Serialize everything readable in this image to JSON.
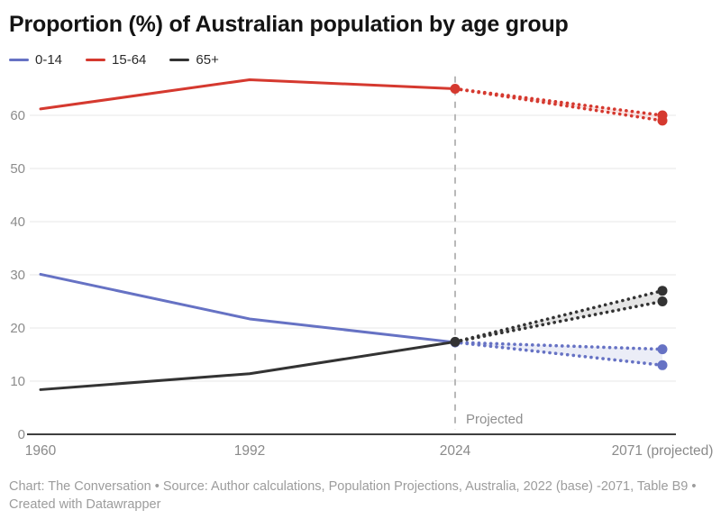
{
  "title": "Proportion (%) of Australian population by age group",
  "chart_data": {
    "type": "line",
    "title": "Proportion (%) of Australian population by age group",
    "x_categories": [
      "1960",
      "1992",
      "2024",
      "2071 (projected)"
    ],
    "y_ticks": [
      0,
      10,
      20,
      30,
      40,
      50,
      60
    ],
    "ylim": [
      0,
      68
    ],
    "grid": true,
    "legend_position": "top",
    "projection": {
      "divider_at": "2024",
      "divider_label": "Projected"
    },
    "series": [
      {
        "name": "0-14",
        "color": "#6672c4",
        "historical": {
          "x": [
            "1960",
            "1992",
            "2024"
          ],
          "values": [
            30.1,
            21.7,
            17.3
          ]
        },
        "projected_2071": {
          "high": 16,
          "low": 13
        }
      },
      {
        "name": "15-64",
        "color": "#d5392f",
        "historical": {
          "x": [
            "1960",
            "1992",
            "2024"
          ],
          "values": [
            61.2,
            66.7,
            65.0
          ]
        },
        "projected_2071": {
          "high": 60,
          "low": 59
        }
      },
      {
        "name": "65+",
        "color": "#333333",
        "historical": {
          "x": [
            "1960",
            "1992",
            "2024"
          ],
          "values": [
            8.4,
            11.4,
            17.4
          ]
        },
        "projected_2071": {
          "high": 27,
          "low": 25
        }
      }
    ]
  },
  "footer": {
    "line1": "Chart: The Conversation • Source: Author calculations, Population Projections, Australia, 2022 (base) -2071, Table B9 •",
    "line2": "Created with Datawrapper"
  }
}
